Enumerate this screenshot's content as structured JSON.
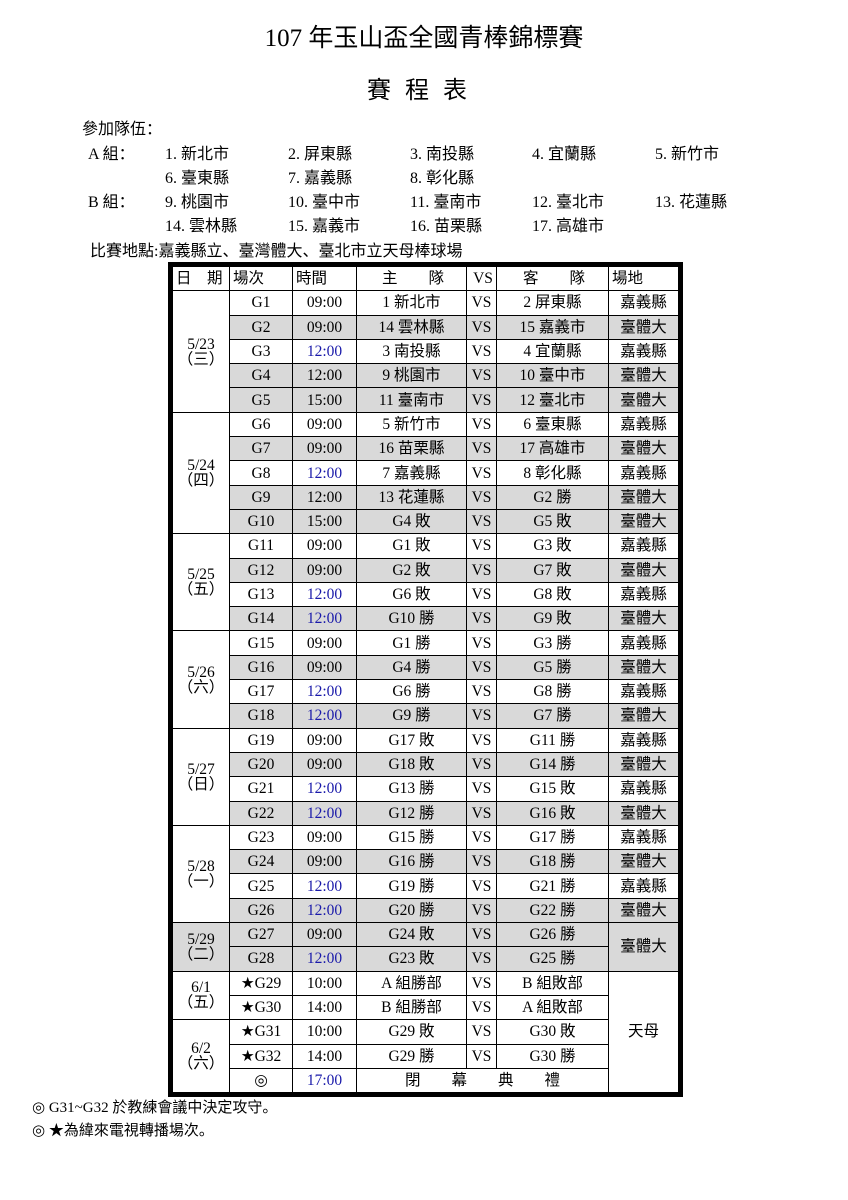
{
  "title": "107 年玉山盃全國青棒錦標賽",
  "subtitle": "賽程表",
  "teams_label": "參加隊伍：",
  "groups": [
    {
      "label": "A 組：",
      "rows": [
        [
          "1. 新北市",
          "2. 屏東縣",
          "3. 南投縣",
          "4. 宜蘭縣",
          "5. 新竹市"
        ],
        [
          "6. 臺東縣",
          "7. 嘉義縣",
          "8. 彰化縣"
        ]
      ]
    },
    {
      "label": "B 組：",
      "rows": [
        [
          "9. 桃園市",
          "10. 臺中市",
          "11. 臺南市",
          "12. 臺北市",
          "13. 花蓮縣"
        ],
        [
          "14. 雲林縣",
          "15. 嘉義市",
          "16. 苗栗縣",
          "17. 高雄市"
        ]
      ]
    }
  ],
  "venues_line": "比賽地點:嘉義縣立、臺灣體大、臺北市立天母棒球場",
  "table": {
    "headers": [
      "日　期",
      "場次",
      "時間",
      "主　　隊",
      "VS",
      "客　　隊",
      "場地"
    ],
    "shade_color": "#d9d9d9",
    "highlight_time_color": "#1a1aaa",
    "days": [
      {
        "date": "5/23",
        "weekday": "（三）",
        "games": [
          [
            "G1",
            "09:00",
            false,
            "1 新北市",
            "2 屏東縣",
            "嘉義縣"
          ],
          [
            "G2",
            "09:00",
            false,
            "14 雲林縣",
            "15 嘉義市",
            "臺體大"
          ],
          [
            "G3",
            "12:00",
            true,
            "3  南投縣",
            "4 宜蘭縣",
            "嘉義縣"
          ],
          [
            "G4",
            "12:00",
            false,
            "9 桃園市",
            "10 臺中市",
            "臺體大"
          ],
          [
            "G5",
            "15:00",
            false,
            "11 臺南市",
            "12 臺北市",
            "臺體大"
          ]
        ]
      },
      {
        "date": "5/24",
        "weekday": "（四）",
        "games": [
          [
            "G6",
            "09:00",
            false,
            "5 新竹市",
            "6 臺東縣",
            "嘉義縣"
          ],
          [
            "G7",
            "09:00",
            false,
            "16 苗栗縣",
            "17 高雄市",
            "臺體大"
          ],
          [
            "G8",
            "12:00",
            true,
            "7 嘉義縣",
            "8 彰化縣",
            "嘉義縣"
          ],
          [
            "G9",
            "12:00",
            false,
            "13 花蓮縣",
            "G2 勝",
            "臺體大"
          ],
          [
            "G10",
            "15:00",
            false,
            "G4 敗",
            "G5 敗",
            "臺體大"
          ]
        ]
      },
      {
        "date": "5/25",
        "weekday": "（五）",
        "games": [
          [
            "G11",
            "09:00",
            false,
            "G1 敗",
            "G3 敗",
            "嘉義縣"
          ],
          [
            "G12",
            "09:00",
            false,
            "G2 敗",
            "G7 敗",
            "臺體大"
          ],
          [
            "G13",
            "12:00",
            true,
            "G6 敗",
            "G8 敗",
            "嘉義縣"
          ],
          [
            "G14",
            "12:00",
            true,
            "G10 勝",
            "G9 敗",
            "臺體大"
          ]
        ]
      },
      {
        "date": "5/26",
        "weekday": "（六）",
        "games": [
          [
            "G15",
            "09:00",
            false,
            "G1 勝",
            "G3 勝",
            "嘉義縣"
          ],
          [
            "G16",
            "09:00",
            false,
            "G4 勝",
            "G5 勝",
            "臺體大"
          ],
          [
            "G17",
            "12:00",
            true,
            "G6 勝",
            "G8 勝",
            "嘉義縣"
          ],
          [
            "G18",
            "12:00",
            true,
            "G9 勝",
            "G7 勝",
            "臺體大"
          ]
        ]
      },
      {
        "date": "5/27",
        "weekday": "（日）",
        "games": [
          [
            "G19",
            "09:00",
            false,
            "G17 敗",
            "G11 勝",
            "嘉義縣"
          ],
          [
            "G20",
            "09:00",
            false,
            "G18 敗",
            "G14 勝",
            "臺體大"
          ],
          [
            "G21",
            "12:00",
            true,
            "G13 勝",
            "G15 敗",
            "嘉義縣"
          ],
          [
            "G22",
            "12:00",
            true,
            "G12 勝",
            "G16 敗",
            "臺體大"
          ]
        ]
      },
      {
        "date": "5/28",
        "weekday": "（一）",
        "games": [
          [
            "G23",
            "09:00",
            false,
            "G15 勝",
            "G17 勝",
            "嘉義縣"
          ],
          [
            "G24",
            "09:00",
            false,
            "G16 勝",
            "G18 勝",
            "臺體大"
          ],
          [
            "G25",
            "12:00",
            true,
            "G19 勝",
            "G21 勝",
            "嘉義縣"
          ],
          [
            "G26",
            "12:00",
            true,
            "G20 勝",
            "G22 勝",
            "臺體大"
          ]
        ]
      },
      {
        "date": "5/29",
        "weekday": "（二）",
        "games": [
          [
            "G27",
            "09:00",
            false,
            "G24 敗",
            "G26 勝",
            "臺體大"
          ],
          [
            "G28",
            "12:00",
            true,
            "G23 敗",
            "G25 勝",
            null
          ]
        ]
      },
      {
        "date": "6/1",
        "weekday": "（五）",
        "games": [
          [
            "★G29",
            "10:00",
            false,
            "A 組勝部",
            "B 組敗部",
            "天母"
          ],
          [
            "★G30",
            "14:00",
            false,
            "B 組勝部",
            "A 組敗部",
            null
          ]
        ]
      },
      {
        "date": "6/2",
        "weekday": "（六）",
        "games": [
          [
            "★G31",
            "10:00",
            false,
            "G29 敗",
            "G30 敗",
            null
          ],
          [
            "★G32",
            "14:00",
            false,
            "G29 勝",
            "G30 勝",
            null
          ],
          [
            "◎",
            "17:00",
            true,
            "閉　　幕　　典　　禮",
            null,
            null
          ]
        ]
      }
    ],
    "vs": "VS"
  },
  "footnotes": [
    "◎  G31~G32 於教練會議中決定攻守。",
    "◎  ★為緯來電視轉播場次。"
  ]
}
